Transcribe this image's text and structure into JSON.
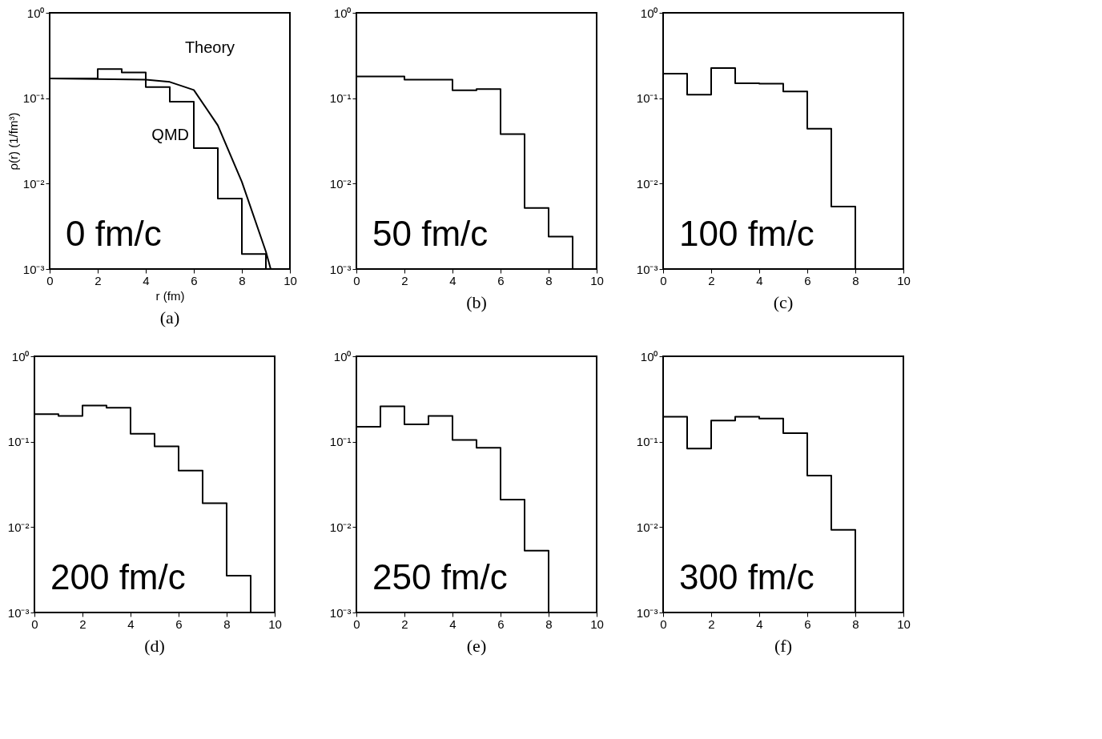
{
  "chart_data": [
    {
      "type": "histogram",
      "title": "(a)",
      "xlabel": "r (fm)",
      "ylabel": "ρ(r) (1/fm³)",
      "annotations": [
        "0 fm/c"
      ],
      "log": true,
      "xlim": [
        0,
        10
      ],
      "xticks": [
        0,
        2,
        4,
        6,
        8,
        10
      ],
      "ylim": [
        0.001,
        1
      ],
      "yticks": [
        {
          "value": 0.001,
          "label": "10⁻³"
        },
        {
          "value": 0.01,
          "label": "10⁻²"
        },
        {
          "value": 0.1,
          "label": "10⁻¹"
        },
        {
          "value": 1,
          "label": "10⁰"
        }
      ],
      "series": [
        {
          "name": "QMD",
          "type": "histogram",
          "color": "#000000",
          "bins": [
            0,
            1,
            2,
            3,
            4,
            5,
            6,
            7,
            8,
            9
          ],
          "values": [
            0.17,
            0.17,
            0.22,
            0.2,
            0.135,
            0.091,
            0.026,
            0.0067,
            0.0015
          ]
        },
        {
          "name": "Theory",
          "type": "line",
          "color": "#000000",
          "x": [
            0,
            4,
            5,
            6,
            7,
            8,
            9,
            9.2
          ],
          "values": [
            0.17,
            0.165,
            0.155,
            0.125,
            0.048,
            0.0105,
            0.0016,
            0.001
          ]
        }
      ]
    },
    {
      "type": "histogram",
      "title": "(b)",
      "annotations": [
        "50 fm/c"
      ],
      "log": true,
      "xlim": [
        0,
        10
      ],
      "xticks": [
        0,
        2,
        4,
        6,
        8,
        10
      ],
      "ylim": [
        0.001,
        1
      ],
      "yticks": [
        {
          "value": 0.001,
          "label": "10⁻³"
        },
        {
          "value": 0.01,
          "label": "10⁻²"
        },
        {
          "value": 0.1,
          "label": "10⁻¹"
        },
        {
          "value": 1,
          "label": "10⁰"
        }
      ],
      "color": "#000000",
      "bins": [
        0,
        1,
        2,
        3,
        4,
        5,
        6,
        7,
        8,
        9
      ],
      "values": [
        0.18,
        0.18,
        0.165,
        0.165,
        0.124,
        0.128,
        0.038,
        0.0052,
        0.0024
      ]
    },
    {
      "type": "histogram",
      "title": "(c)",
      "annotations": [
        "100 fm/c"
      ],
      "log": true,
      "xlim": [
        0,
        10
      ],
      "xticks": [
        0,
        2,
        4,
        6,
        8,
        10
      ],
      "ylim": [
        0.001,
        1
      ],
      "yticks": [
        {
          "value": 0.001,
          "label": "10⁻³"
        },
        {
          "value": 0.01,
          "label": "10⁻²"
        },
        {
          "value": 0.1,
          "label": "10⁻¹"
        },
        {
          "value": 1,
          "label": "10⁰"
        }
      ],
      "color": "#000000",
      "bins": [
        0,
        1,
        2,
        3,
        4,
        5,
        6,
        7,
        8
      ],
      "values": [
        0.194,
        0.11,
        0.225,
        0.15,
        0.148,
        0.12,
        0.044,
        0.0054
      ]
    },
    {
      "type": "histogram",
      "title": "(d)",
      "annotations": [
        "200 fm/c"
      ],
      "log": true,
      "xlim": [
        0,
        10
      ],
      "xticks": [
        0,
        2,
        4,
        6,
        8,
        10
      ],
      "ylim": [
        0.001,
        1
      ],
      "yticks": [
        {
          "value": 0.001,
          "label": "10⁻³"
        },
        {
          "value": 0.01,
          "label": "10⁻²"
        },
        {
          "value": 0.1,
          "label": "10⁻¹"
        },
        {
          "value": 1,
          "label": "10⁰"
        }
      ],
      "color": "#000000",
      "bins": [
        0,
        1,
        2,
        3,
        4,
        5,
        6,
        7,
        8,
        9
      ],
      "values": [
        0.21,
        0.2,
        0.265,
        0.25,
        0.124,
        0.088,
        0.046,
        0.019,
        0.0027
      ]
    },
    {
      "type": "histogram",
      "title": "(e)",
      "annotations": [
        "250 fm/c"
      ],
      "log": true,
      "xlim": [
        0,
        10
      ],
      "xticks": [
        0,
        2,
        4,
        6,
        8,
        10
      ],
      "ylim": [
        0.001,
        1
      ],
      "yticks": [
        {
          "value": 0.001,
          "label": "10⁻³"
        },
        {
          "value": 0.01,
          "label": "10⁻²"
        },
        {
          "value": 0.1,
          "label": "10⁻¹"
        },
        {
          "value": 1,
          "label": "10⁰"
        }
      ],
      "color": "#000000",
      "bins": [
        0,
        1,
        2,
        3,
        4,
        5,
        6,
        7,
        8
      ],
      "values": [
        0.15,
        0.26,
        0.16,
        0.2,
        0.105,
        0.085,
        0.021,
        0.0053
      ]
    },
    {
      "type": "histogram",
      "title": "(f)",
      "annotations": [
        "300 fm/c"
      ],
      "log": true,
      "xlim": [
        0,
        10
      ],
      "xticks": [
        0,
        2,
        4,
        6,
        8,
        10
      ],
      "ylim": [
        0.001,
        1
      ],
      "yticks": [
        {
          "value": 0.001,
          "label": "10⁻³"
        },
        {
          "value": 0.01,
          "label": "10⁻²"
        },
        {
          "value": 0.1,
          "label": "10⁻¹"
        },
        {
          "value": 1,
          "label": "10⁰"
        }
      ],
      "color": "#000000",
      "bins": [
        0,
        1,
        2,
        3,
        4,
        5,
        6,
        7,
        8
      ],
      "values": [
        0.196,
        0.083,
        0.177,
        0.196,
        0.187,
        0.126,
        0.04,
        0.0093
      ]
    }
  ]
}
